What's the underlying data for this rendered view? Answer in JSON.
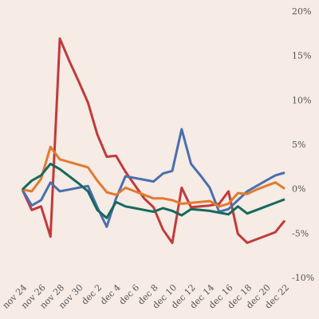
{
  "chart_data": {
    "type": "line",
    "categories": [
      "nov 24",
      null,
      "nov 26",
      null,
      "nov 28",
      null,
      "nov 30",
      null,
      "dec 2",
      null,
      "dec 4",
      null,
      "dec 6",
      null,
      "dec 8",
      null,
      "dec 10",
      null,
      "dec 12",
      null,
      "dec 14",
      null,
      "dec 16",
      null,
      "dec 18",
      null,
      "dec 20",
      null,
      "dec 22"
    ],
    "series": [
      {
        "color": "#c13a3a",
        "values": [
          0,
          -2.3,
          -1.9,
          -5.3,
          17,
          14.5,
          12.2,
          9.8,
          6.2,
          3.7,
          3.8,
          2,
          0.5,
          -1,
          -2,
          -4.5,
          -6,
          0.2,
          -2,
          -1.9,
          -1.8,
          -1.6,
          -0.2,
          -5,
          -6,
          -5.6,
          -5.2,
          -4.8,
          -3.5
        ]
      },
      {
        "color": "#4a6fae",
        "values": [
          0,
          -1.8,
          -1.2,
          0.8,
          -0.2,
          0,
          0.2,
          0.4,
          -2,
          -4.2,
          -1,
          1.5,
          1.3,
          1.1,
          0.9,
          1.8,
          2.1,
          6.8,
          2.9,
          1.6,
          0.2,
          -2.5,
          -2.2,
          -1.2,
          -0.2,
          0.4,
          1,
          1.6,
          1.9
        ]
      },
      {
        "color": "#e07b2f",
        "values": [
          0,
          -0.2,
          1.2,
          4.8,
          3.4,
          3.1,
          2.8,
          2.5,
          1,
          -0.3,
          -0.6,
          0.2,
          -0.2,
          -0.6,
          -1,
          -1,
          -1.2,
          -1.6,
          -1.5,
          -1.4,
          -1.3,
          -1.9,
          -1.6,
          -0.4,
          -0.5,
          0,
          0.4,
          0.8,
          0.1
        ]
      },
      {
        "color": "#16695c",
        "values": [
          0,
          1,
          1.6,
          2.9,
          2.3,
          1.5,
          0.7,
          -0.2,
          -2.3,
          -3.2,
          -1.4,
          -1.9,
          -2.1,
          -2.3,
          -2.5,
          -2.1,
          -2.4,
          -2.9,
          -2.2,
          -2.3,
          -2.4,
          -2.6,
          -2.8,
          -1.9,
          -2.7,
          -2.3,
          -1.9,
          -1.5,
          -1.1
        ]
      }
    ],
    "ylim": [
      -10,
      20
    ],
    "yticks": [
      {
        "value": 20,
        "label": "20%"
      },
      {
        "value": 15,
        "label": "15%"
      },
      {
        "value": 10,
        "label": "10%"
      },
      {
        "value": 5,
        "label": "5%"
      },
      {
        "value": 0,
        "label": "0%"
      },
      {
        "value": -5,
        "label": "-5%"
      },
      {
        "value": -10,
        "label": "-10%"
      }
    ],
    "grid": false
  }
}
